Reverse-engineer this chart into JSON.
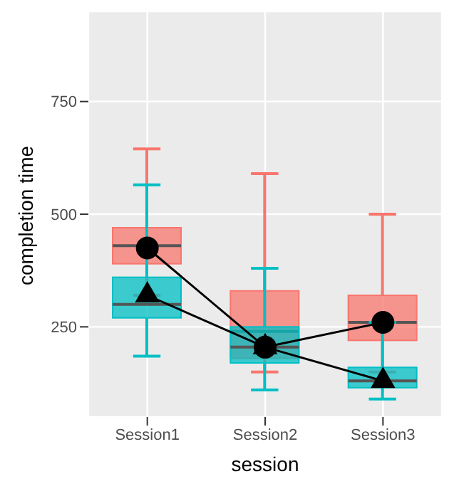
{
  "chart_data": {
    "type": "box",
    "xlabel": "session",
    "ylabel": "completion time",
    "categories": [
      "Session1",
      "Session2",
      "Session3"
    ],
    "ylim": [
      50,
      950
    ],
    "yticks": [
      250,
      500,
      750
    ],
    "grid": true,
    "legend": false,
    "series": [
      {
        "type": "box",
        "color": "#f8766d",
        "boxes": [
          {
            "low": 320,
            "q1": 390,
            "median": 430,
            "q3": 470,
            "high": 645
          },
          {
            "low": 150,
            "q1": 180,
            "median": 240,
            "q3": 330,
            "high": 590
          },
          {
            "low": 150,
            "q1": 220,
            "median": 260,
            "q3": 320,
            "high": 500
          }
        ]
      },
      {
        "type": "box",
        "color": "#00bfc4",
        "boxes": [
          {
            "low": 185,
            "q1": 270,
            "median": 300,
            "q3": 360,
            "high": 565
          },
          {
            "low": 110,
            "q1": 170,
            "median": 205,
            "q3": 250,
            "high": 380
          },
          {
            "low": 90,
            "q1": 115,
            "median": 130,
            "q3": 160,
            "high": 260
          }
        ]
      },
      {
        "type": "line",
        "color": "#000000",
        "marker": "circle",
        "values": [
          425,
          205,
          260
        ]
      },
      {
        "type": "line",
        "color": "#000000",
        "marker": "triangle",
        "values": [
          320,
          205,
          130
        ]
      }
    ]
  }
}
